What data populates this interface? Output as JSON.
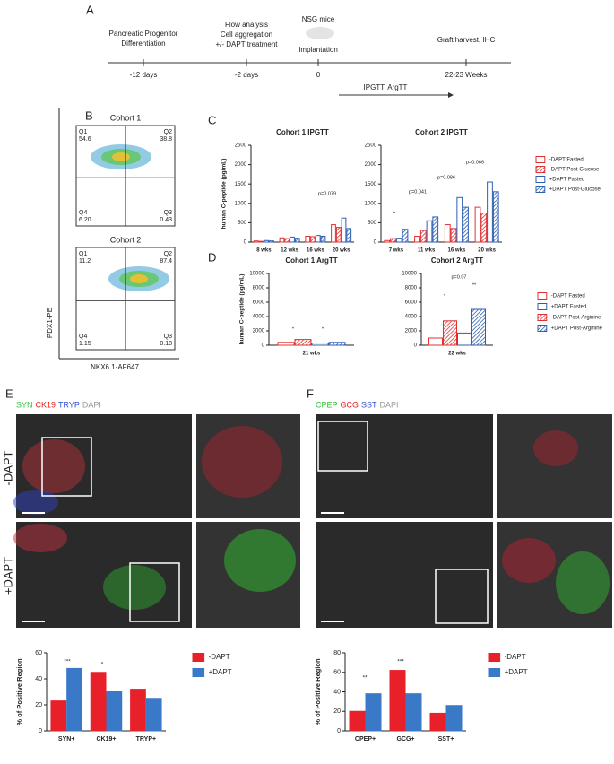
{
  "panel_letters": [
    "A",
    "B",
    "C",
    "D",
    "E",
    "F"
  ],
  "timeline": {
    "steps": [
      {
        "above": [
          "Pancreatic Progenitor",
          "Differentiation"
        ],
        "below": "-12 days"
      },
      {
        "above": [
          "Flow analysis",
          "Cell aggregation",
          "+/- DAPT treatment"
        ],
        "below": "-2 days"
      },
      {
        "above": [
          "NSG mice",
          "Implantation"
        ],
        "below": "0"
      },
      {
        "above": [
          "Graft harvest, IHC"
        ],
        "below": "22-23 Weeks"
      }
    ],
    "interval_label": "IPGTT, ArgTT"
  },
  "flow": {
    "x_label": "NKX6.1-AF647",
    "y_label": "PDX1-PE",
    "plots": [
      {
        "title": "Cohort 1",
        "quadrants": [
          [
            "Q1",
            "54.6"
          ],
          [
            "Q2",
            "38.8"
          ],
          [
            "Q4",
            "6.20"
          ],
          [
            "Q3",
            "0.43"
          ]
        ]
      },
      {
        "title": "Cohort 2",
        "quadrants": [
          [
            "Q1",
            "11.2"
          ],
          [
            "Q2",
            "87.4"
          ],
          [
            "Q4",
            "1.15"
          ],
          [
            "Q3",
            "0.18"
          ]
        ]
      }
    ]
  },
  "images": [
    {
      "stains": [
        {
          "text": "SYN",
          "color": "#2fbf3a"
        },
        {
          "text": "CK19",
          "color": "#e02020"
        },
        {
          "text": "TRYP",
          "color": "#2f4fd0"
        },
        {
          "text": "DAPI",
          "color": "#999999"
        }
      ],
      "rows": [
        "-DAPT",
        "+DAPT"
      ]
    },
    {
      "stains": [
        {
          "text": "CPEP",
          "color": "#2fbf3a"
        },
        {
          "text": "GCG",
          "color": "#e02020"
        },
        {
          "text": "SST",
          "color": "#2f4fd0"
        },
        {
          "text": "DAPI",
          "color": "#999999"
        }
      ]
    }
  ],
  "chart_data": [
    {
      "type": "bar",
      "y_label": "human C-peptide (pg/mL)",
      "legend": "right",
      "series": [
        {
          "name": "-DAPT Fasted",
          "color": "#e03030",
          "style": "open"
        },
        {
          "name": "-DAPT Post-Glucose",
          "color": "#e03030",
          "style": "hatched"
        },
        {
          "name": "+DAPT Fasted",
          "color": "#2e5fb0",
          "style": "open"
        },
        {
          "name": "+DAPT Post-Glucose",
          "color": "#2e5fb0",
          "style": "hatched"
        }
      ],
      "subplots": [
        {
          "title": "Cohort 1 IPGTT",
          "categories": [
            "8 wks",
            "12 wks",
            "16 wks",
            "20 wks"
          ],
          "values": [
            [
              30,
              110,
              150,
              450
            ],
            [
              20,
              90,
              140,
              380
            ],
            [
              40,
              130,
              170,
              620
            ],
            [
              30,
              100,
              150,
              350
            ]
          ],
          "ylim": [
            0,
            2500
          ],
          "yticks": [
            0,
            500,
            1000,
            1500,
            2000,
            2500
          ],
          "annotations": [
            "p=0.079"
          ]
        },
        {
          "title": "Cohort 2 IPGTT",
          "categories": [
            "7 wks",
            "11 wks",
            "16 wks",
            "20 wks"
          ],
          "values": [
            [
              40,
              150,
              450,
              900
            ],
            [
              90,
              300,
              350,
              750
            ],
            [
              100,
              550,
              1150,
              1550
            ],
            [
              330,
              650,
              900,
              1300
            ]
          ],
          "ylim": [
            0,
            2500
          ],
          "yticks": [
            0,
            500,
            1000,
            1500,
            2000,
            2500
          ],
          "annotations": [
            "*",
            "p=0.041",
            "p=0.086",
            "p=0.066"
          ]
        }
      ]
    },
    {
      "type": "bar",
      "y_label": "human C-peptide (pg/mL)",
      "legend": "right",
      "series": [
        {
          "name": "-DAPT Fasted",
          "color": "#e03030",
          "style": "open"
        },
        {
          "name": "+DAPT Fasted",
          "color": "#2e5fb0",
          "style": "open"
        },
        {
          "name": "-DAPT Post-Arginine",
          "color": "#e03030",
          "style": "hatched"
        },
        {
          "name": "+DAPT Post-Arginine",
          "color": "#2e5fb0",
          "style": "hatched"
        }
      ],
      "subplots": [
        {
          "title": "Cohort 1 ArgTT",
          "categories": [
            "21 wks"
          ],
          "values": [
            [
              400
            ],
            [
              300
            ],
            [
              800
            ],
            [
              400
            ]
          ],
          "ylim": [
            0,
            10000
          ],
          "yticks": [
            0,
            2000,
            4000,
            6000,
            8000,
            10000
          ],
          "annotations": [
            "*",
            "*"
          ]
        },
        {
          "title": "Cohort 2 ArgTT",
          "categories": [
            "22 wks"
          ],
          "values": [
            [
              1000
            ],
            [
              1700
            ],
            [
              3400
            ],
            [
              5000
            ]
          ],
          "ylim": [
            0,
            10000
          ],
          "yticks": [
            0,
            2000,
            4000,
            6000,
            8000,
            10000
          ],
          "annotations": [
            "*",
            "**",
            "p=0.07"
          ]
        }
      ]
    },
    {
      "type": "bar",
      "y_label": "% of Positive Region",
      "legend": "right",
      "series": [
        {
          "name": "-DAPT",
          "color": "#e8202a",
          "style": "solid"
        },
        {
          "name": "+DAPT",
          "color": "#3a78c8",
          "style": "solid"
        }
      ],
      "subplots": [
        {
          "categories": [
            "SYN+",
            "CK19+",
            "TRYP+"
          ],
          "values": [
            [
              23,
              45,
              32
            ],
            [
              48,
              30,
              25
            ]
          ],
          "ylim": [
            0,
            60
          ],
          "yticks": [
            0,
            20,
            40,
            60
          ],
          "annotations": [
            "***",
            "*"
          ]
        }
      ]
    },
    {
      "type": "bar",
      "y_label": "% of Positive Region",
      "legend": "right",
      "series": [
        {
          "name": "-DAPT",
          "color": "#e8202a",
          "style": "solid"
        },
        {
          "name": "+DAPT",
          "color": "#3a78c8",
          "style": "solid"
        }
      ],
      "subplots": [
        {
          "categories": [
            "CPEP+",
            "GCG+",
            "SST+"
          ],
          "values": [
            [
              20,
              62,
              18
            ],
            [
              38,
              38,
              26
            ]
          ],
          "ylim": [
            0,
            80
          ],
          "yticks": [
            0,
            20,
            40,
            60,
            80
          ],
          "annotations": [
            "**",
            "***"
          ]
        }
      ]
    }
  ]
}
